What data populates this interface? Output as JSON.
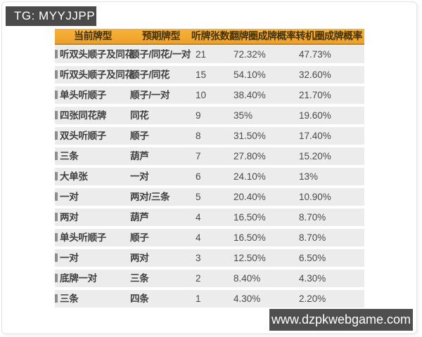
{
  "badges": {
    "tg": "TG: MYYJJPP",
    "site": "www.dzpkwebgame.com"
  },
  "colors": {
    "header_bg_top": "#f6b23c",
    "header_bg_bottom": "#eea02a",
    "header_border": "#c8851d",
    "header_text": "#43320a",
    "row_bg": "#ececec",
    "row_text": "#3f3f3f",
    "value_text": "#4a4a4a",
    "row_marker": "#8d8d8d",
    "badge_bg": "#4a4a4a",
    "badge_text": "#ffffff"
  },
  "table": {
    "headers": [
      "当前牌型",
      "预期牌型",
      "听牌张数",
      "翻牌圈成牌概率",
      "转机圈成牌概率"
    ],
    "rows": [
      {
        "current": "听双头顺子及同花",
        "expected": "顺子/同花/一对",
        "outs": "21",
        "flop": "72.32%",
        "turn": "47.73%"
      },
      {
        "current": "听双头顺子及同花",
        "expected": "顺子/同花",
        "outs": "15",
        "flop": "54.10%",
        "turn": "32.60%"
      },
      {
        "current": "单头听顺子",
        "expected": "顺子/一对",
        "outs": "10",
        "flop": "38.40%",
        "turn": "21.70%"
      },
      {
        "current": "四张同花牌",
        "expected": "同花",
        "outs": "9",
        "flop": "35%",
        "turn": "19.60%"
      },
      {
        "current": "双头听顺子",
        "expected": "顺子",
        "outs": "8",
        "flop": "31.50%",
        "turn": "17.40%"
      },
      {
        "current": "三条",
        "expected": "葫芦",
        "outs": "7",
        "flop": "27.80%",
        "turn": "15.20%"
      },
      {
        "current": "大单张",
        "expected": "一对",
        "outs": "6",
        "flop": "24.10%",
        "turn": "13%"
      },
      {
        "current": "一对",
        "expected": "两对/三条",
        "outs": "5",
        "flop": "20.40%",
        "turn": "10.90%"
      },
      {
        "current": "两对",
        "expected": "葫芦",
        "outs": "4",
        "flop": "16.50%",
        "turn": "8.70%"
      },
      {
        "current": "单头听顺子",
        "expected": "顺子",
        "outs": "4",
        "flop": "16.50%",
        "turn": "8.70%"
      },
      {
        "current": "一对",
        "expected": "两对",
        "outs": "3",
        "flop": "12.50%",
        "turn": "6.50%"
      },
      {
        "current": "底牌一对",
        "expected": "三条",
        "outs": "2",
        "flop": "8.40%",
        "turn": "4.30%"
      },
      {
        "current": "三条",
        "expected": "四条",
        "outs": "1",
        "flop": "4.30%",
        "turn": "2.20%"
      }
    ]
  },
  "chart_data": {
    "type": "table",
    "title": "",
    "columns": [
      "当前牌型",
      "预期牌型",
      "听牌张数",
      "翻牌圈成牌概率",
      "转机圈成牌概率"
    ],
    "rows": [
      [
        "听双头顺子及同花",
        "顺子/同花/一对",
        21,
        "72.32%",
        "47.73%"
      ],
      [
        "听双头顺子及同花",
        "顺子/同花",
        15,
        "54.10%",
        "32.60%"
      ],
      [
        "单头听顺子",
        "顺子/一对",
        10,
        "38.40%",
        "21.70%"
      ],
      [
        "四张同花牌",
        "同花",
        9,
        "35%",
        "19.60%"
      ],
      [
        "双头听顺子",
        "顺子",
        8,
        "31.50%",
        "17.40%"
      ],
      [
        "三条",
        "葫芦",
        7,
        "27.80%",
        "15.20%"
      ],
      [
        "大单张",
        "一对",
        6,
        "24.10%",
        "13%"
      ],
      [
        "一对",
        "两对/三条",
        5,
        "20.40%",
        "10.90%"
      ],
      [
        "两对",
        "葫芦",
        4,
        "16.50%",
        "8.70%"
      ],
      [
        "单头听顺子",
        "顺子",
        4,
        "16.50%",
        "8.70%"
      ],
      [
        "一对",
        "两对",
        3,
        "12.50%",
        "6.50%"
      ],
      [
        "底牌一对",
        "三条",
        2,
        "8.40%",
        "4.30%"
      ],
      [
        "三条",
        "四条",
        1,
        "4.30%",
        "2.20%"
      ]
    ]
  }
}
